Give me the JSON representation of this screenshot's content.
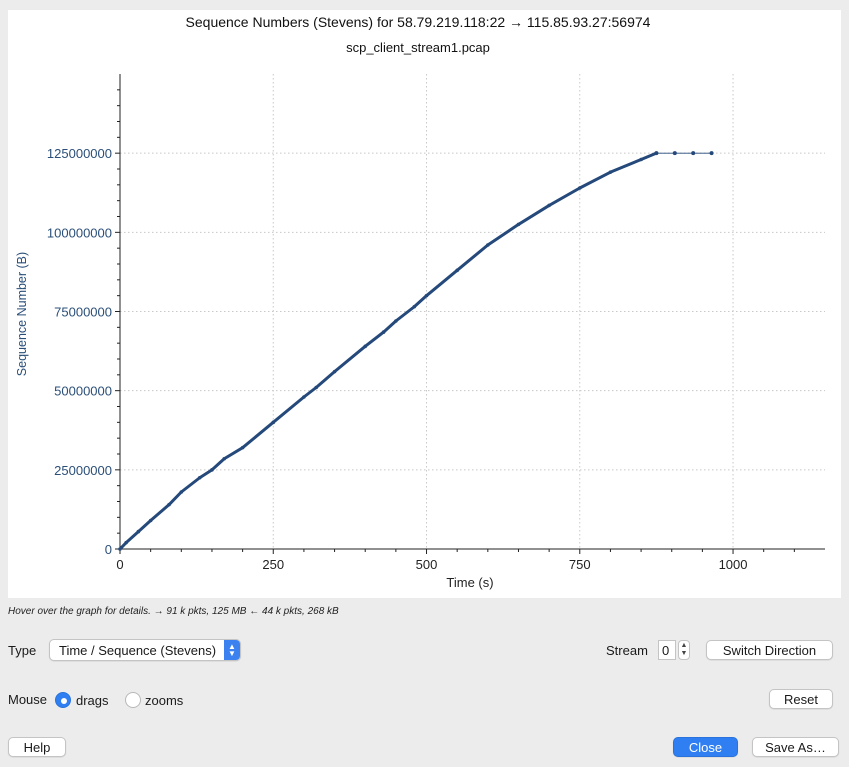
{
  "window": {
    "title": "Sequence Numbers (Stevens) for 58.79.219.118:22 → 115.85.93.27:56974",
    "subtitle": "scp_client_stream1.pcap"
  },
  "hint_text": "Hover over the graph for details. → 91 k pkts, 125 MB ← 44 k pkts, 268 kB",
  "controls": {
    "type_label": "Type",
    "type_value": "Time / Sequence (Stevens)",
    "stream_label": "Stream",
    "stream_value": "0",
    "switch_direction_label": "Switch Direction",
    "mouse_label": "Mouse",
    "drags_label": "drags",
    "zooms_label": "zooms",
    "mouse_mode": "drags",
    "reset_label": "Reset",
    "help_label": "Help",
    "close_label": "Close",
    "save_as_label": "Save As…"
  },
  "colors": {
    "series": "#24497a",
    "accent": "#2f7ff3",
    "grid": "#c8c8c8"
  },
  "chart_data": {
    "type": "scatter",
    "xlabel": "Time (s)",
    "ylabel": "Sequence Number (B)",
    "xlim": [
      0,
      1150
    ],
    "ylim": [
      0,
      150000000
    ],
    "x_ticks": [
      0,
      250,
      500,
      750,
      1000
    ],
    "y_ticks": [
      0,
      25000000,
      50000000,
      75000000,
      100000000,
      125000000
    ],
    "x_tick_labels": [
      "0",
      "250",
      "500",
      "750",
      "1000"
    ],
    "y_tick_labels": [
      "0",
      "25000000",
      "50000000",
      "75000000",
      "100000000",
      "125000000"
    ],
    "grid": true,
    "series": [
      {
        "x": [
          0,
          10,
          30,
          50,
          80,
          100,
          130,
          150,
          170,
          200,
          250,
          300,
          320,
          350,
          400,
          430,
          450,
          480,
          500,
          550,
          600,
          650,
          700,
          750,
          800,
          850,
          875
        ],
        "y": [
          0,
          2000000,
          5500000,
          9000000,
          14000000,
          18000000,
          22500000,
          25000000,
          28500000,
          32000000,
          40000000,
          48000000,
          51000000,
          56000000,
          64000000,
          68500000,
          72000000,
          76500000,
          80000000,
          88000000,
          96000000,
          102500000,
          108500000,
          114000000,
          119000000,
          123000000,
          125000000
        ]
      },
      {
        "x": [
          875,
          905,
          935,
          965
        ],
        "y": [
          125000000,
          125000000,
          125000000,
          125000000
        ]
      }
    ]
  }
}
